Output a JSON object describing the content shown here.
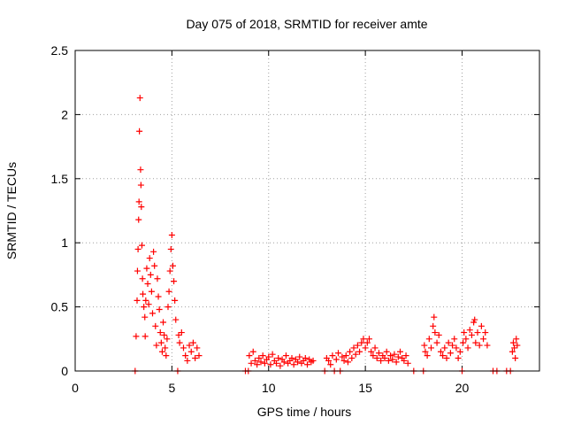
{
  "chart_data": {
    "type": "scatter",
    "title": "Day 075 of 2018, SRMTID for receiver amte",
    "xlabel": "GPS time / hours",
    "ylabel": "SRMTID / TECUs",
    "xlim": [
      0,
      24
    ],
    "ylim": [
      0,
      2.5
    ],
    "x_ticks": [
      0,
      5,
      10,
      15,
      20
    ],
    "y_ticks": [
      0,
      0.5,
      1,
      1.5,
      2,
      2.5
    ],
    "x_tick_labels": [
      "0",
      "5",
      "10",
      "15",
      "20"
    ],
    "y_tick_labels": [
      "0",
      "0.5",
      "1",
      "1.5",
      "2",
      "2.5"
    ],
    "grid": true,
    "marker": "+",
    "color": "#ff0000",
    "series": [
      {
        "name": "SRMTID",
        "points": [
          [
            3.1,
            0.0
          ],
          [
            3.15,
            0.27
          ],
          [
            3.2,
            0.55
          ],
          [
            3.22,
            0.78
          ],
          [
            3.25,
            0.95
          ],
          [
            3.28,
            1.18
          ],
          [
            3.3,
            1.32
          ],
          [
            3.32,
            1.87
          ],
          [
            3.35,
            2.13
          ],
          [
            3.38,
            1.57
          ],
          [
            3.4,
            1.45
          ],
          [
            3.42,
            1.28
          ],
          [
            3.45,
            0.98
          ],
          [
            3.48,
            0.72
          ],
          [
            3.5,
            0.6
          ],
          [
            3.55,
            0.5
          ],
          [
            3.6,
            0.42
          ],
          [
            3.62,
            0.27
          ],
          [
            3.65,
            0.55
          ],
          [
            3.7,
            0.8
          ],
          [
            3.75,
            0.68
          ],
          [
            3.8,
            0.52
          ],
          [
            3.85,
            0.88
          ],
          [
            3.9,
            0.75
          ],
          [
            3.95,
            0.62
          ],
          [
            4.0,
            0.45
          ],
          [
            4.05,
            0.93
          ],
          [
            4.1,
            0.82
          ],
          [
            4.15,
            0.35
          ],
          [
            4.2,
            0.2
          ],
          [
            4.25,
            0.72
          ],
          [
            4.3,
            0.58
          ],
          [
            4.35,
            0.48
          ],
          [
            4.4,
            0.3
          ],
          [
            4.45,
            0.22
          ],
          [
            4.5,
            0.15
          ],
          [
            4.55,
            0.38
          ],
          [
            4.6,
            0.28
          ],
          [
            4.65,
            0.18
          ],
          [
            4.7,
            0.12
          ],
          [
            4.75,
            0.25
          ],
          [
            4.8,
            0.5
          ],
          [
            4.85,
            0.62
          ],
          [
            4.9,
            0.78
          ],
          [
            4.95,
            0.95
          ],
          [
            5.0,
            1.06
          ],
          [
            5.05,
            0.82
          ],
          [
            5.1,
            0.7
          ],
          [
            5.15,
            0.55
          ],
          [
            5.2,
            0.4
          ],
          [
            5.3,
            0.0
          ],
          [
            5.35,
            0.28
          ],
          [
            5.4,
            0.22
          ],
          [
            5.5,
            0.3
          ],
          [
            5.6,
            0.18
          ],
          [
            5.7,
            0.12
          ],
          [
            5.8,
            0.08
          ],
          [
            5.9,
            0.2
          ],
          [
            6.0,
            0.15
          ],
          [
            6.1,
            0.22
          ],
          [
            6.2,
            0.1
          ],
          [
            6.3,
            0.18
          ],
          [
            6.4,
            0.12
          ],
          [
            8.8,
            0.0
          ],
          [
            8.95,
            0.0
          ],
          [
            9.0,
            0.12
          ],
          [
            9.1,
            0.06
          ],
          [
            9.2,
            0.15
          ],
          [
            9.3,
            0.08
          ],
          [
            9.4,
            0.05
          ],
          [
            9.5,
            0.1
          ],
          [
            9.6,
            0.07
          ],
          [
            9.7,
            0.12
          ],
          [
            9.8,
            0.06
          ],
          [
            9.9,
            0.09
          ],
          [
            10.0,
            0.11
          ],
          [
            10.1,
            0.05
          ],
          [
            10.2,
            0.13
          ],
          [
            10.3,
            0.08
          ],
          [
            10.4,
            0.06
          ],
          [
            10.5,
            0.1
          ],
          [
            10.6,
            0.04
          ],
          [
            10.7,
            0.09
          ],
          [
            10.8,
            0.07
          ],
          [
            10.9,
            0.12
          ],
          [
            11.0,
            0.06
          ],
          [
            11.1,
            0.08
          ],
          [
            11.2,
            0.1
          ],
          [
            11.3,
            0.05
          ],
          [
            11.4,
            0.09
          ],
          [
            11.5,
            0.07
          ],
          [
            11.6,
            0.11
          ],
          [
            11.7,
            0.06
          ],
          [
            11.8,
            0.08
          ],
          [
            11.9,
            0.1
          ],
          [
            12.0,
            0.05
          ],
          [
            12.1,
            0.09
          ],
          [
            12.2,
            0.07
          ],
          [
            12.3,
            0.08
          ],
          [
            12.9,
            0.0
          ],
          [
            13.0,
            0.1
          ],
          [
            13.1,
            0.08
          ],
          [
            13.2,
            0.05
          ],
          [
            13.3,
            0.12
          ],
          [
            13.4,
            0.0
          ],
          [
            13.5,
            0.09
          ],
          [
            13.6,
            0.14
          ],
          [
            13.7,
            0.0
          ],
          [
            13.8,
            0.11
          ],
          [
            13.9,
            0.08
          ],
          [
            14.0,
            0.12
          ],
          [
            14.1,
            0.07
          ],
          [
            14.2,
            0.15
          ],
          [
            14.3,
            0.1
          ],
          [
            14.4,
            0.18
          ],
          [
            14.5,
            0.13
          ],
          [
            14.6,
            0.2
          ],
          [
            14.7,
            0.15
          ],
          [
            14.8,
            0.22
          ],
          [
            14.9,
            0.25
          ],
          [
            15.0,
            0.18
          ],
          [
            15.1,
            0.22
          ],
          [
            15.2,
            0.25
          ],
          [
            15.3,
            0.15
          ],
          [
            15.4,
            0.12
          ],
          [
            15.5,
            0.18
          ],
          [
            15.6,
            0.1
          ],
          [
            15.7,
            0.14
          ],
          [
            15.8,
            0.08
          ],
          [
            15.9,
            0.12
          ],
          [
            16.0,
            0.1
          ],
          [
            16.1,
            0.15
          ],
          [
            16.2,
            0.08
          ],
          [
            16.3,
            0.12
          ],
          [
            16.4,
            0.09
          ],
          [
            16.5,
            0.13
          ],
          [
            16.6,
            0.07
          ],
          [
            16.7,
            0.11
          ],
          [
            16.8,
            0.15
          ],
          [
            16.9,
            0.1
          ],
          [
            17.0,
            0.08
          ],
          [
            17.1,
            0.12
          ],
          [
            17.2,
            0.06
          ],
          [
            17.5,
            0.0
          ],
          [
            18.0,
            0.0
          ],
          [
            18.05,
            0.2
          ],
          [
            18.1,
            0.15
          ],
          [
            18.2,
            0.12
          ],
          [
            18.3,
            0.25
          ],
          [
            18.4,
            0.18
          ],
          [
            18.5,
            0.35
          ],
          [
            18.55,
            0.42
          ],
          [
            18.6,
            0.3
          ],
          [
            18.7,
            0.22
          ],
          [
            18.8,
            0.28
          ],
          [
            18.9,
            0.15
          ],
          [
            19.0,
            0.12
          ],
          [
            19.1,
            0.18
          ],
          [
            19.2,
            0.1
          ],
          [
            19.3,
            0.22
          ],
          [
            19.4,
            0.14
          ],
          [
            19.5,
            0.2
          ],
          [
            19.6,
            0.25
          ],
          [
            19.7,
            0.18
          ],
          [
            19.8,
            0.1
          ],
          [
            19.9,
            0.15
          ],
          [
            20.0,
            0.0
          ],
          [
            20.05,
            0.22
          ],
          [
            20.1,
            0.3
          ],
          [
            20.2,
            0.25
          ],
          [
            20.3,
            0.18
          ],
          [
            20.4,
            0.32
          ],
          [
            20.5,
            0.28
          ],
          [
            20.6,
            0.38
          ],
          [
            20.65,
            0.4
          ],
          [
            20.7,
            0.22
          ],
          [
            20.8,
            0.3
          ],
          [
            20.9,
            0.2
          ],
          [
            21.0,
            0.35
          ],
          [
            21.1,
            0.25
          ],
          [
            21.2,
            0.3
          ],
          [
            21.3,
            0.2
          ],
          [
            21.6,
            0.0
          ],
          [
            21.8,
            0.0
          ],
          [
            22.3,
            0.0
          ],
          [
            22.5,
            0.0
          ],
          [
            22.6,
            0.15
          ],
          [
            22.65,
            0.22
          ],
          [
            22.7,
            0.18
          ],
          [
            22.75,
            0.1
          ],
          [
            22.8,
            0.25
          ],
          [
            22.85,
            0.2
          ]
        ]
      }
    ]
  }
}
